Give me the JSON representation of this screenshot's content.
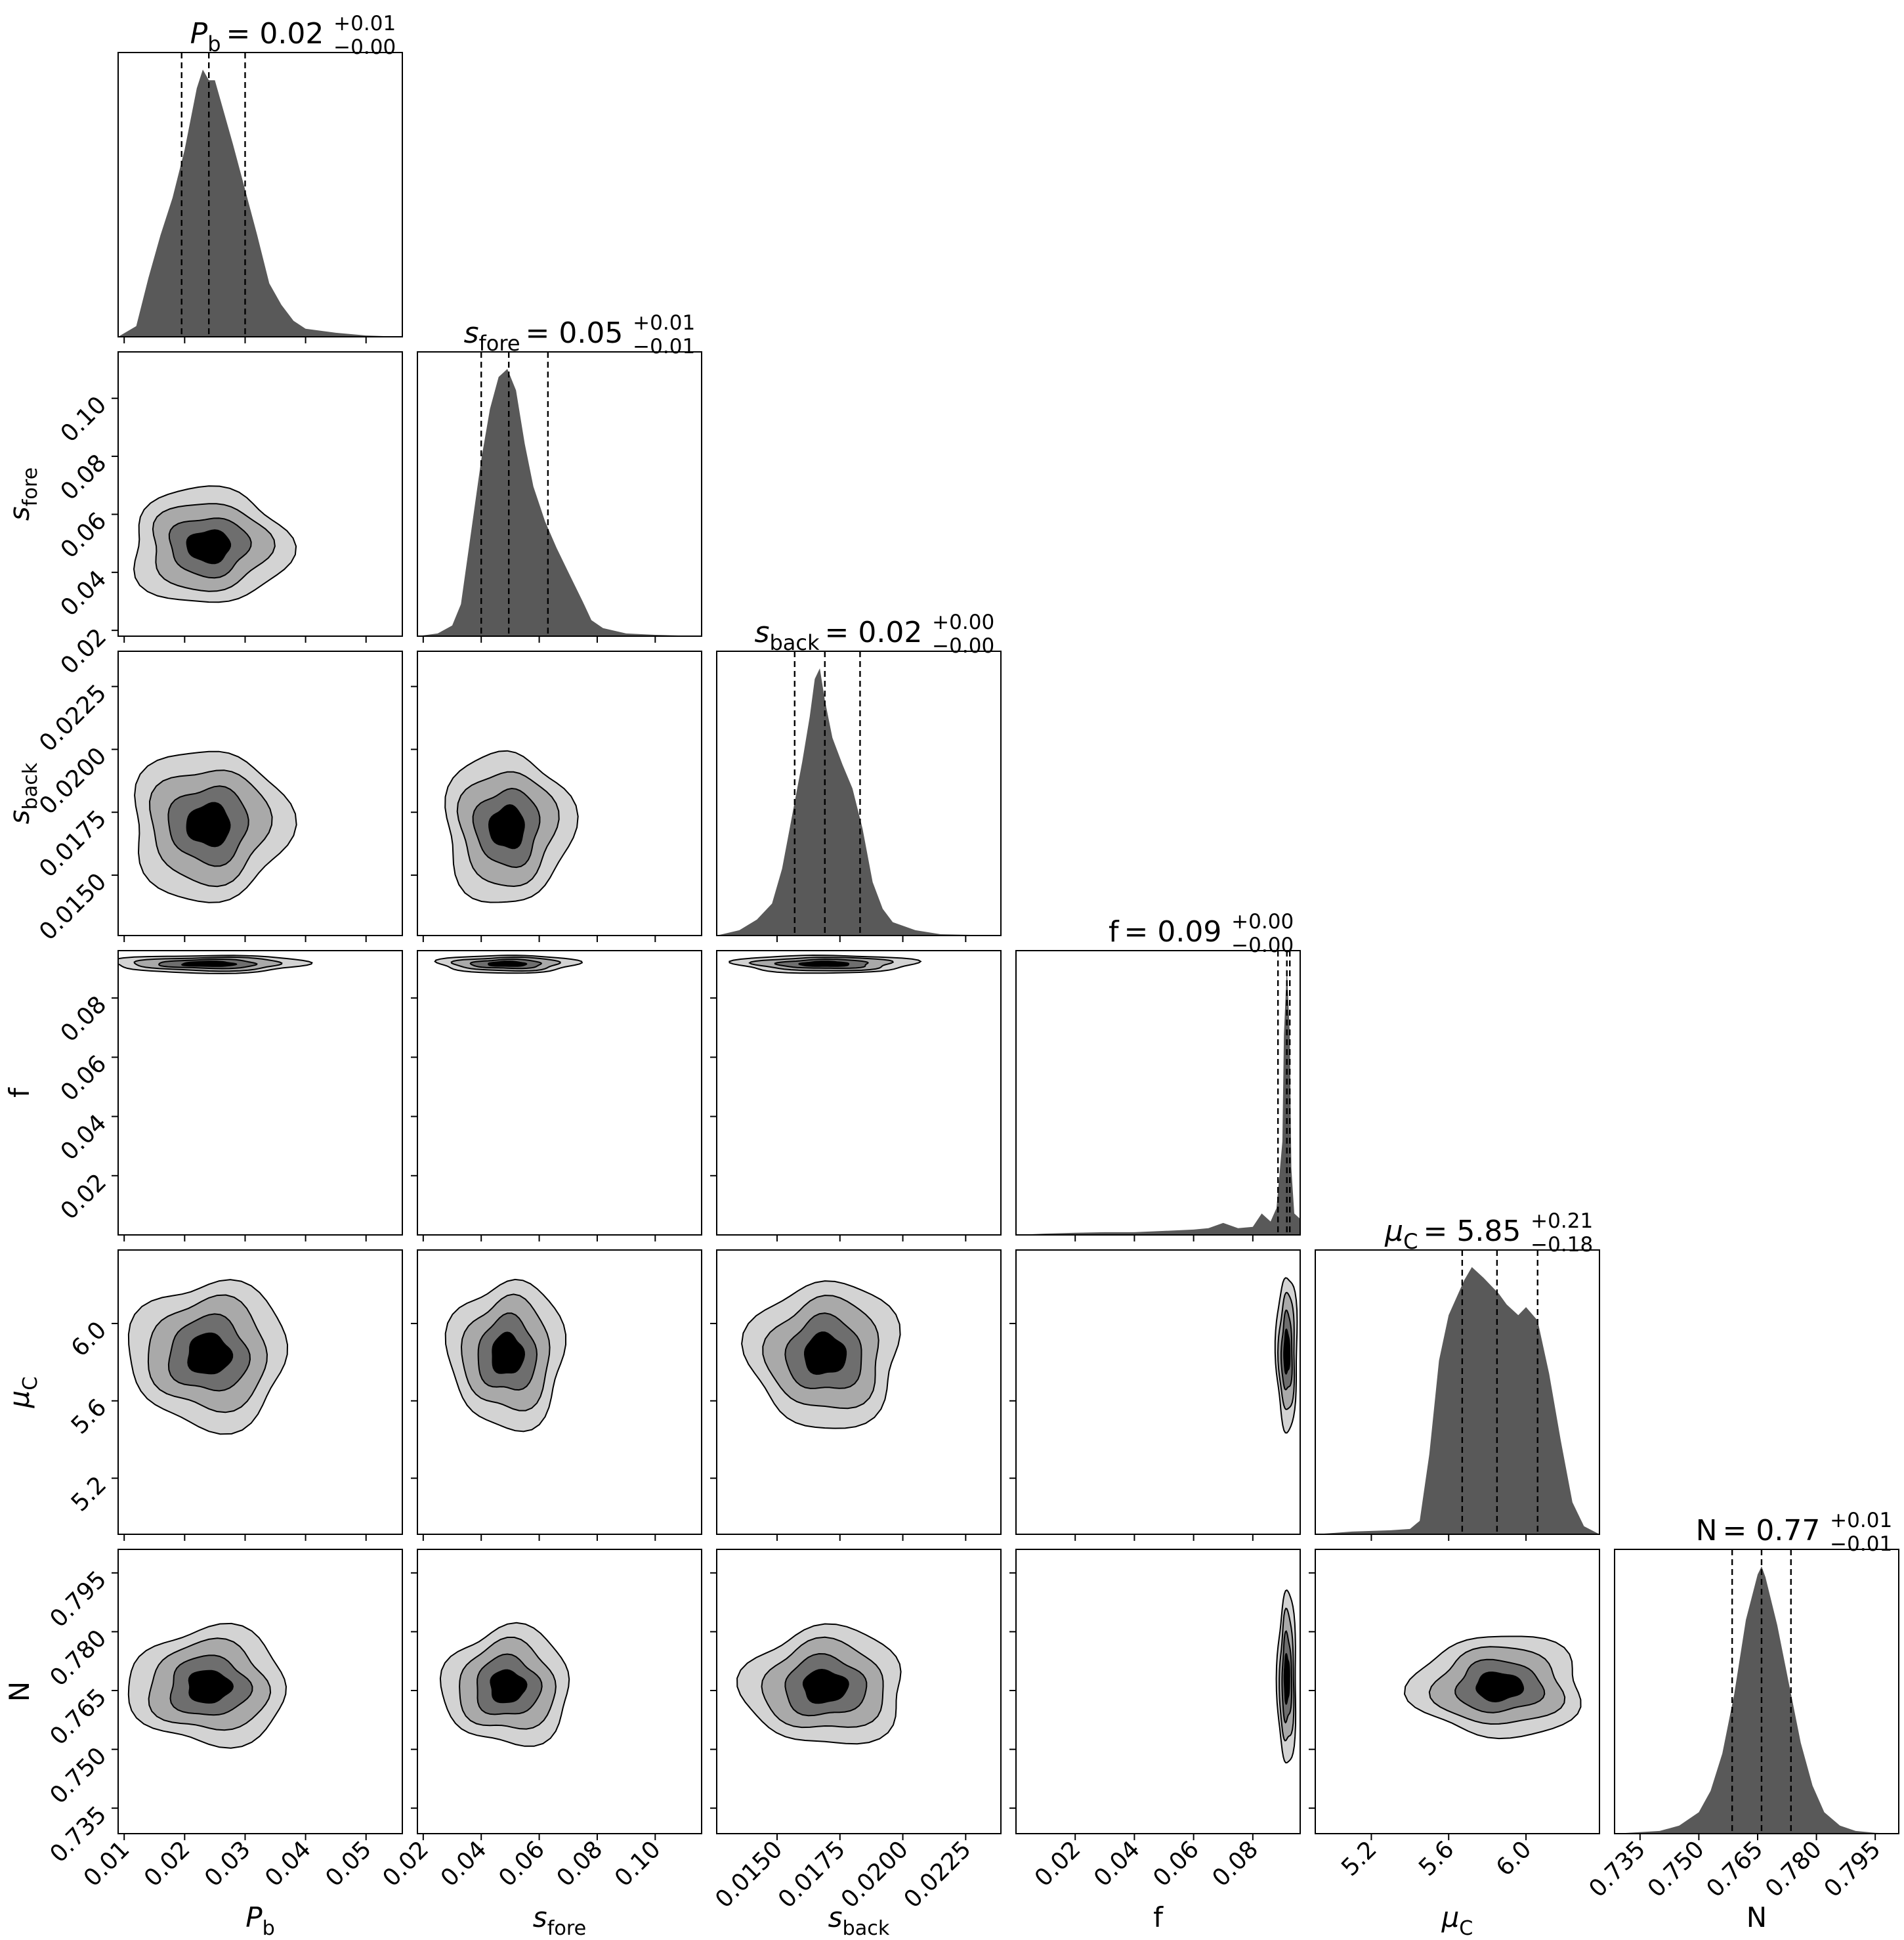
{
  "chart_data": {
    "type": "corner",
    "parameters": [
      {
        "key": "Pb",
        "label": "P",
        "sub": "b",
        "ticks": [
          0.01,
          0.02,
          0.03,
          0.04,
          0.05
        ],
        "tick_labels": [
          "0.01",
          "0.02",
          "0.03",
          "0.04",
          "0.05"
        ],
        "range": [
          0.009,
          0.056
        ],
        "median": 0.024,
        "q16": 0.0195,
        "q84": 0.03,
        "title_value": "0.02",
        "title_plus": "+0.01",
        "title_minus": "−0.00"
      },
      {
        "key": "sfore",
        "label": "s",
        "sub": "fore",
        "ticks": [
          0.02,
          0.04,
          0.06,
          0.08,
          0.1
        ],
        "tick_labels": [
          "0.02",
          "0.04",
          "0.06",
          "0.08",
          "0.10"
        ],
        "range": [
          0.018,
          0.116
        ],
        "median": 0.0495,
        "q16": 0.04,
        "q84": 0.063,
        "title_value": "0.05",
        "title_plus": "+0.01",
        "title_minus": "−0.01"
      },
      {
        "key": "sback",
        "label": "s",
        "sub": "back",
        "ticks": [
          0.015,
          0.0175,
          0.02,
          0.0225
        ],
        "tick_labels": [
          "0.0150",
          "0.0175",
          "0.0200",
          "0.0225"
        ],
        "range": [
          0.0126,
          0.0239
        ],
        "median": 0.0169,
        "q16": 0.0157,
        "q84": 0.0183,
        "title_value": "0.02",
        "title_plus": "+0.00",
        "title_minus": "−0.00"
      },
      {
        "key": "f",
        "label": "f",
        "sub": "",
        "ticks": [
          0.02,
          0.04,
          0.06,
          0.08
        ],
        "tick_labels": [
          "0.02",
          "0.04",
          "0.06",
          "0.08"
        ],
        "range": [
          0.0,
          0.096
        ],
        "median": 0.0915,
        "q16": 0.0885,
        "q84": 0.0925,
        "title_value": "0.09",
        "title_plus": "+0.00",
        "title_minus": "−0.00"
      },
      {
        "key": "muC",
        "label": "μ",
        "sub": "C",
        "ticks": [
          5.2,
          5.6,
          6.0
        ],
        "tick_labels": [
          "5.2",
          "5.6",
          "6.0"
        ],
        "range": [
          4.91,
          6.38
        ],
        "median": 5.85,
        "q16": 5.67,
        "q84": 6.06,
        "title_value": "5.85",
        "title_plus": "+0.21",
        "title_minus": "−0.18"
      },
      {
        "key": "N",
        "label": "N",
        "sub": "",
        "ticks": [
          0.735,
          0.75,
          0.765,
          0.78,
          0.795
        ],
        "tick_labels": [
          "0.735",
          "0.750",
          "0.765",
          "0.780",
          "0.795"
        ],
        "range": [
          0.7285,
          0.801
        ],
        "median": 0.766,
        "q16": 0.7585,
        "q84": 0.7735,
        "title_value": "0.77",
        "title_plus": "+0.01",
        "title_minus": "−0.01"
      }
    ],
    "histograms": [
      {
        "param": "Pb",
        "x": [
          0.009,
          0.012,
          0.014,
          0.016,
          0.018,
          0.02,
          0.022,
          0.023,
          0.024,
          0.025,
          0.026,
          0.028,
          0.03,
          0.032,
          0.034,
          0.036,
          0.038,
          0.04,
          0.045,
          0.05,
          0.056
        ],
        "y": [
          0.0,
          0.04,
          0.22,
          0.38,
          0.52,
          0.7,
          0.93,
          1.0,
          0.96,
          0.96,
          0.88,
          0.72,
          0.55,
          0.38,
          0.2,
          0.12,
          0.06,
          0.03,
          0.015,
          0.005,
          0.0
        ]
      },
      {
        "param": "sfore",
        "x": [
          0.018,
          0.025,
          0.03,
          0.033,
          0.036,
          0.04,
          0.043,
          0.046,
          0.049,
          0.052,
          0.055,
          0.058,
          0.062,
          0.066,
          0.07,
          0.075,
          0.078,
          0.082,
          0.09,
          0.1,
          0.116
        ],
        "y": [
          0.0,
          0.01,
          0.04,
          0.12,
          0.35,
          0.66,
          0.85,
          0.97,
          1.0,
          0.92,
          0.72,
          0.56,
          0.43,
          0.33,
          0.24,
          0.13,
          0.06,
          0.03,
          0.01,
          0.005,
          0.0
        ]
      },
      {
        "param": "sback",
        "x": [
          0.0126,
          0.0135,
          0.0142,
          0.0148,
          0.0152,
          0.0156,
          0.016,
          0.0163,
          0.0165,
          0.0167,
          0.0169,
          0.0172,
          0.0176,
          0.018,
          0.0184,
          0.0188,
          0.0192,
          0.0196,
          0.0205,
          0.0215,
          0.0239
        ],
        "y": [
          0.0,
          0.02,
          0.06,
          0.12,
          0.25,
          0.45,
          0.65,
          0.82,
          0.96,
          1.0,
          0.88,
          0.74,
          0.64,
          0.55,
          0.4,
          0.2,
          0.1,
          0.05,
          0.02,
          0.005,
          0.0
        ]
      },
      {
        "param": "f",
        "x": [
          0.0,
          0.01,
          0.02,
          0.03,
          0.04,
          0.05,
          0.06,
          0.065,
          0.07,
          0.075,
          0.08,
          0.083,
          0.086,
          0.088,
          0.09,
          0.0905,
          0.0915,
          0.0925,
          0.093,
          0.094,
          0.096
        ],
        "y": [
          0.0,
          0.005,
          0.008,
          0.01,
          0.01,
          0.015,
          0.02,
          0.025,
          0.045,
          0.025,
          0.03,
          0.08,
          0.05,
          0.1,
          0.35,
          0.75,
          1.0,
          0.75,
          0.25,
          0.08,
          0.06
        ]
      },
      {
        "param": "muC",
        "x": [
          4.91,
          5.1,
          5.3,
          5.4,
          5.45,
          5.5,
          5.55,
          5.6,
          5.68,
          5.72,
          5.78,
          5.86,
          5.9,
          5.96,
          6.0,
          6.06,
          6.12,
          6.18,
          6.24,
          6.3,
          6.38
        ],
        "y": [
          0.0,
          0.01,
          0.015,
          0.02,
          0.05,
          0.3,
          0.65,
          0.82,
          0.95,
          1.0,
          0.96,
          0.9,
          0.86,
          0.82,
          0.85,
          0.8,
          0.6,
          0.35,
          0.12,
          0.03,
          0.0
        ]
      },
      {
        "param": "N",
        "x": [
          0.7285,
          0.74,
          0.745,
          0.75,
          0.753,
          0.756,
          0.759,
          0.762,
          0.765,
          0.766,
          0.767,
          0.77,
          0.773,
          0.776,
          0.779,
          0.782,
          0.786,
          0.79,
          0.795,
          0.801
        ],
        "y": [
          0.0,
          0.01,
          0.03,
          0.08,
          0.16,
          0.3,
          0.52,
          0.8,
          0.97,
          1.0,
          0.96,
          0.78,
          0.56,
          0.34,
          0.18,
          0.08,
          0.03,
          0.01,
          0.003,
          0.0
        ]
      }
    ],
    "pairs": [
      {
        "x": "Pb",
        "y": "sfore",
        "center": [
          0.024,
          0.049
        ],
        "spread": [
          0.0065,
          0.01
        ]
      },
      {
        "x": "Pb",
        "y": "sback",
        "center": [
          0.024,
          0.017
        ],
        "spread": [
          0.0065,
          0.0015
        ]
      },
      {
        "x": "sfore",
        "y": "sback",
        "center": [
          0.049,
          0.0169
        ],
        "spread": [
          0.011,
          0.0015
        ]
      },
      {
        "x": "Pb",
        "y": "f",
        "center": [
          0.024,
          0.0915
        ],
        "spread": [
          0.008,
          0.0015
        ]
      },
      {
        "x": "sfore",
        "y": "f",
        "center": [
          0.049,
          0.0915
        ],
        "spread": [
          0.012,
          0.0015
        ]
      },
      {
        "x": "sback",
        "y": "f",
        "center": [
          0.0169,
          0.0915
        ],
        "spread": [
          0.0018,
          0.0015
        ]
      },
      {
        "x": "Pb",
        "y": "muC",
        "center": [
          0.024,
          5.84
        ],
        "spread": [
          0.0065,
          0.19
        ]
      },
      {
        "x": "sfore",
        "y": "muC",
        "center": [
          0.049,
          5.84
        ],
        "spread": [
          0.01,
          0.19
        ]
      },
      {
        "x": "sback",
        "y": "muC",
        "center": [
          0.0169,
          5.84
        ],
        "spread": [
          0.0015,
          0.19
        ]
      },
      {
        "x": "f",
        "y": "muC",
        "center": [
          0.0915,
          5.85
        ],
        "spread": [
          0.0018,
          0.2
        ]
      },
      {
        "x": "Pb",
        "y": "N",
        "center": [
          0.024,
          0.766
        ],
        "spread": [
          0.0065,
          0.0075
        ]
      },
      {
        "x": "sfore",
        "y": "N",
        "center": [
          0.049,
          0.766
        ],
        "spread": [
          0.011,
          0.0075
        ]
      },
      {
        "x": "sback",
        "y": "N",
        "center": [
          0.0169,
          0.766
        ],
        "spread": [
          0.0016,
          0.0075
        ]
      },
      {
        "x": "f",
        "y": "N",
        "center": [
          0.0915,
          0.768
        ],
        "spread": [
          0.0016,
          0.011
        ]
      },
      {
        "x": "muC",
        "y": "N",
        "center": [
          5.86,
          0.766
        ],
        "spread": [
          0.22,
          0.0065
        ]
      }
    ],
    "levels": [
      "#d3d3d3",
      "#a9a9a9",
      "#6e6e6e",
      "#000000"
    ],
    "hist_fill": "#595959",
    "frame_color": "#000000",
    "background": "#ffffff"
  }
}
